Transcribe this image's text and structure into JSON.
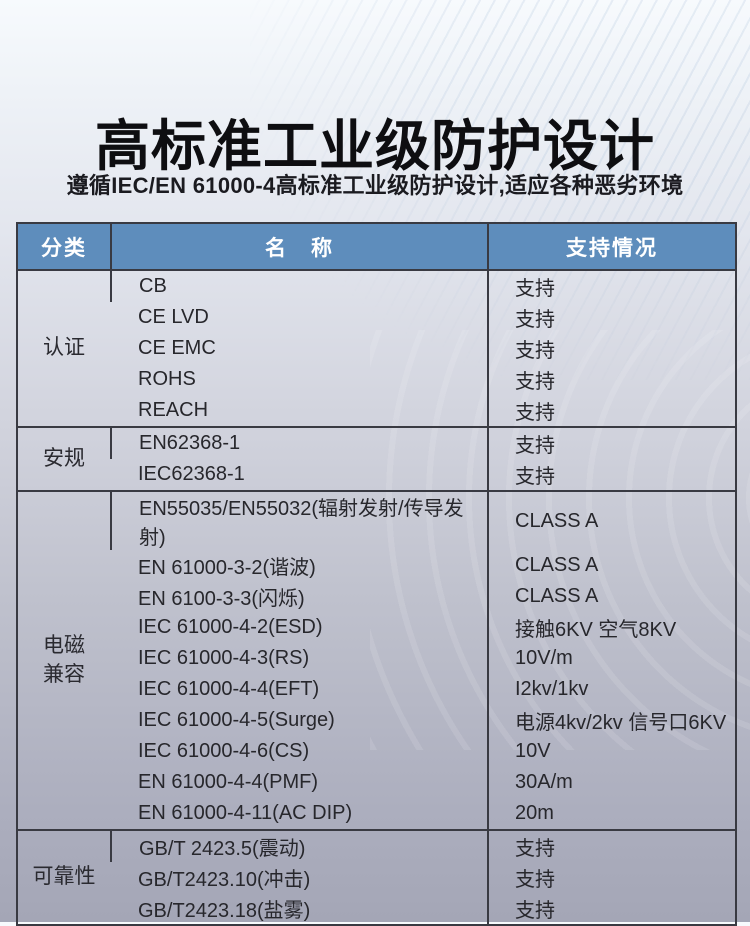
{
  "page": {
    "title": "高标准工业级防护设计",
    "subtitle": "遵循IEC/EN 61000-4高标准工业级防护设计,适应各种恶劣环境"
  },
  "colors": {
    "header_bg": "#5e8dbc",
    "header_text": "#ffffff",
    "border": "#393a42",
    "body_text": "#27272c",
    "page_bg_top": "#f7fafd",
    "page_bg_bottom": "#a4a6b6"
  },
  "table": {
    "headers": [
      "分类",
      "名　称",
      "支持情况"
    ],
    "sections": [
      {
        "category": "认证",
        "rows": [
          {
            "name": "CB",
            "support": "支持"
          },
          {
            "name": "CE LVD",
            "support": "支持"
          },
          {
            "name": "CE EMC",
            "support": "支持"
          },
          {
            "name": "ROHS",
            "support": "支持"
          },
          {
            "name": "REACH",
            "support": "支持"
          }
        ]
      },
      {
        "category": "安规",
        "rows": [
          {
            "name": "EN62368-1",
            "support": "支持"
          },
          {
            "name": "IEC62368-1",
            "support": "支持"
          }
        ]
      },
      {
        "category": "电磁\n兼容",
        "rows": [
          {
            "name": "EN55035/EN55032(辐射发射/传导发射)",
            "support": "CLASS A"
          },
          {
            "name": "EN 61000-3-2(谐波)",
            "support": "CLASS A"
          },
          {
            "name": "EN 6100-3-3(闪烁)",
            "support": "CLASS A"
          },
          {
            "name": "IEC 61000-4-2(ESD)",
            "support": "接触6KV 空气8KV"
          },
          {
            "name": "IEC 61000-4-3(RS)",
            "support": "10V/m"
          },
          {
            "name": "IEC 61000-4-4(EFT)",
            "support": "I2kv/1kv"
          },
          {
            "name": "IEC 61000-4-5(Surge)",
            "support": "电源4kv/2kv 信号口6KV"
          },
          {
            "name": "IEC 61000-4-6(CS)",
            "support": "10V"
          },
          {
            "name": "EN 61000-4-4(PMF)",
            "support": "30A/m"
          },
          {
            "name": "EN 61000-4-11(AC DIP)",
            "support": "20m"
          }
        ]
      },
      {
        "category": "可靠性",
        "rows": [
          {
            "name": "GB/T 2423.5(震动)",
            "support": "支持"
          },
          {
            "name": "GB/T2423.10(冲击)",
            "support": "支持"
          },
          {
            "name": "GB/T2423.18(盐雾)",
            "support": "支持"
          }
        ]
      }
    ]
  }
}
